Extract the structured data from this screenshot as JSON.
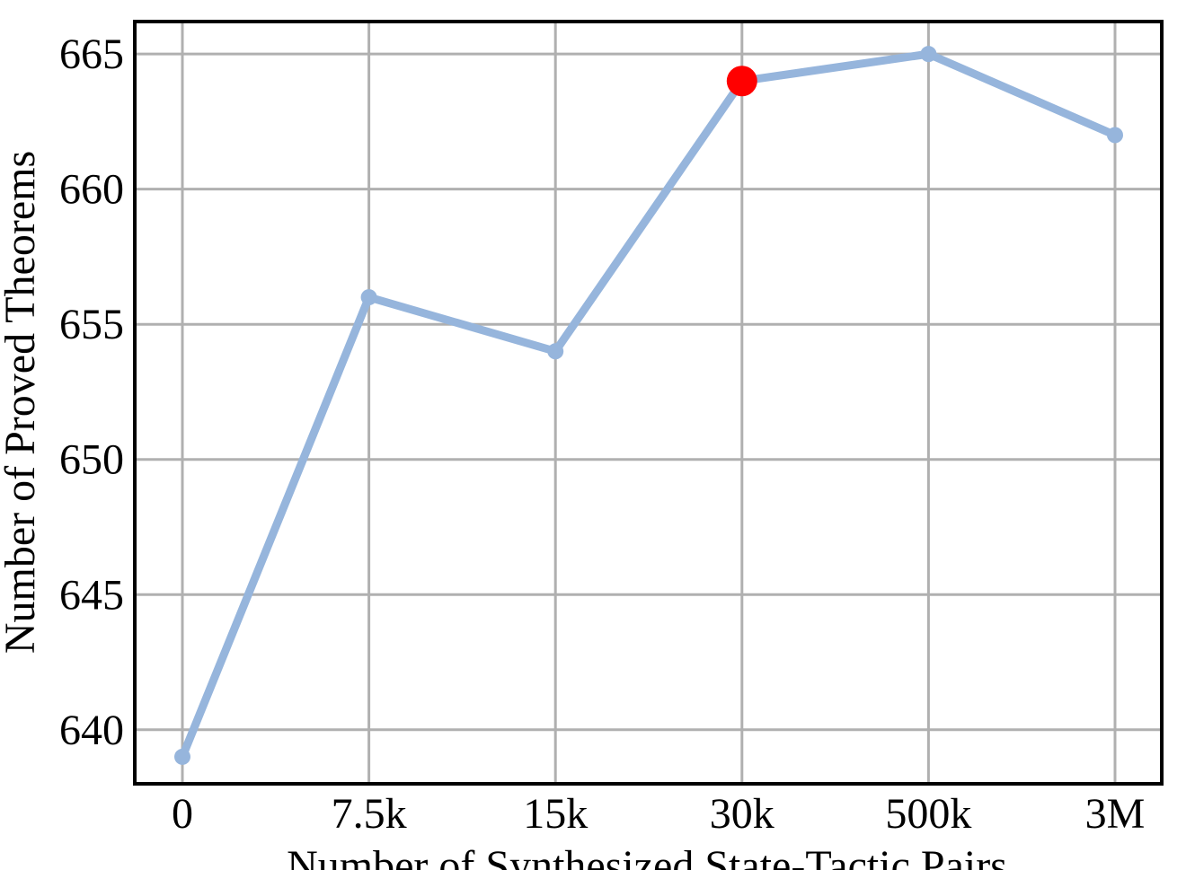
{
  "chart_data": {
    "type": "line",
    "categories": [
      "0",
      "7.5k",
      "15k",
      "30k",
      "500k",
      "3M"
    ],
    "values": [
      639,
      656,
      654,
      664,
      665,
      662
    ],
    "highlight_index": 3,
    "xlabel": "Number of Synthesized State-Tactic Pairs",
    "ylabel": "Number of Proved Theorems",
    "yticks": [
      640,
      645,
      650,
      655,
      660,
      665
    ],
    "ylim": [
      638,
      666.2
    ],
    "grid": true,
    "legend": false,
    "colors": {
      "line": "#96b5dc",
      "highlight": "#ff0000",
      "grid": "#b0b0b0",
      "frame": "#000000"
    }
  }
}
